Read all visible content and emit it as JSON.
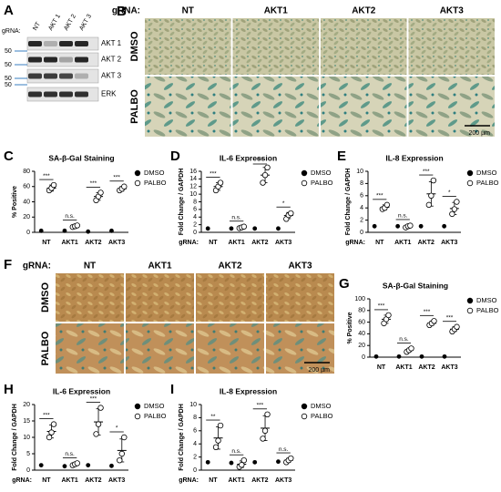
{
  "panels": {
    "A": {
      "letter": "A",
      "prefix": "gRNA:",
      "lanes": [
        "NT",
        "AKT 1",
        "AKT 2",
        "AKT 3"
      ],
      "bands": [
        "AKT 1",
        "AKT 2",
        "AKT 3",
        "ERK"
      ],
      "markers": [
        "50",
        "50",
        "50",
        "50"
      ]
    },
    "B": {
      "letter": "B",
      "prefix": "gRNA:",
      "columns": [
        "NT",
        "AKT1",
        "AKT2",
        "AKT3"
      ],
      "rows": [
        "DMSO",
        "PALBO"
      ],
      "scale_bar": "200 µm"
    },
    "F": {
      "letter": "F",
      "prefix": "gRNA:",
      "columns": [
        "NT",
        "AKT1",
        "AKT2",
        "AKT3"
      ],
      "rows": [
        "DMSO",
        "PALBO"
      ],
      "scale_bar": "200 µm"
    }
  },
  "chart_data": [
    {
      "type": "dot",
      "panel": "C",
      "title": "SA-β-Gal Staining",
      "y_label": "% Positive",
      "categories": [
        "NT",
        "AKT1",
        "AKT2",
        "AKT3"
      ],
      "ylim": [
        0,
        80
      ],
      "yticks": [
        0,
        20,
        40,
        60,
        80
      ],
      "significance": [
        "***",
        "n.s.",
        "***",
        "***"
      ],
      "series": [
        {
          "name": "DMSO",
          "color": "#000000",
          "marker": "filled",
          "values": [
            2,
            2,
            1,
            2
          ]
        },
        {
          "name": "PALBO",
          "color": "#000000",
          "marker": "open",
          "values": [
            58,
            8,
            47,
            57
          ],
          "errors": [
            4,
            1,
            5,
            3
          ],
          "points": [
            [
              55,
              58,
              62
            ],
            [
              7,
              8,
              9
            ],
            [
              42,
              47,
              52
            ],
            [
              55,
              57,
              60
            ]
          ]
        }
      ]
    },
    {
      "type": "dot",
      "panel": "D",
      "title": "IL-6 Expression",
      "y_label": "Fold Change / GAPDH",
      "x_prefix": "gRNA:",
      "categories": [
        "NT",
        "AKT1",
        "AKT2",
        "AKT3"
      ],
      "ylim": [
        0,
        16
      ],
      "yticks": [
        0,
        2,
        4,
        6,
        8,
        10,
        12,
        14,
        16
      ],
      "significance": [
        "***",
        "n.s.",
        "***",
        "*"
      ],
      "series": [
        {
          "name": "DMSO",
          "color": "#000000",
          "marker": "filled",
          "values": [
            1,
            1,
            1,
            1
          ]
        },
        {
          "name": "PALBO",
          "color": "#000000",
          "marker": "open",
          "values": [
            12,
            1.3,
            15,
            4.4
          ],
          "errors": [
            1,
            0.2,
            2,
            0.8
          ],
          "points": [
            [
              11,
              12,
              13
            ],
            [
              1.1,
              1.3,
              1.5
            ],
            [
              13,
              15,
              17
            ],
            [
              3.5,
              4.5,
              5
            ]
          ]
        }
      ]
    },
    {
      "type": "dot",
      "panel": "E",
      "title": "IL-8 Expression",
      "y_label": "Fold Change / GAPDH",
      "x_prefix": "gRNA:",
      "categories": [
        "NT",
        "AKT1",
        "AKT2",
        "AKT3"
      ],
      "ylim": [
        0,
        10
      ],
      "yticks": [
        0,
        2,
        4,
        6,
        8,
        10
      ],
      "significance": [
        "***",
        "n.s.",
        "***",
        "*"
      ],
      "series": [
        {
          "name": "DMSO",
          "color": "#000000",
          "marker": "filled",
          "values": [
            1,
            1,
            1,
            1
          ]
        },
        {
          "name": "PALBO",
          "color": "#000000",
          "marker": "open",
          "values": [
            4.1,
            1,
            6.3,
            3.9
          ],
          "errors": [
            0.4,
            0.2,
            2,
            1
          ],
          "points": [
            [
              3.8,
              4,
              4.5
            ],
            [
              0.8,
              1,
              1.1
            ],
            [
              4.5,
              6,
              8.5
            ],
            [
              3,
              3.8,
              5
            ]
          ]
        }
      ]
    },
    {
      "type": "dot",
      "panel": "G",
      "title": "SA-β-Gal Staining",
      "y_label": "% Positive",
      "categories": [
        "NT",
        "AKT1",
        "AKT2",
        "AKT3"
      ],
      "ylim": [
        0,
        100
      ],
      "yticks": [
        0,
        20,
        40,
        60,
        80,
        100
      ],
      "significance": [
        "***",
        "n.s.",
        "***",
        "***"
      ],
      "series": [
        {
          "name": "DMSO",
          "color": "#000000",
          "marker": "filled",
          "values": [
            1,
            1,
            1,
            1
          ]
        },
        {
          "name": "PALBO",
          "color": "#000000",
          "marker": "open",
          "values": [
            65,
            12,
            58,
            48
          ],
          "errors": [
            7,
            3,
            3.5,
            4
          ],
          "points": [
            [
              58,
              65,
              72
            ],
            [
              9,
              12,
              15
            ],
            [
              55,
              58,
              62
            ],
            [
              44,
              48,
              52
            ]
          ]
        }
      ]
    },
    {
      "type": "dot",
      "panel": "H",
      "title": "IL-6 Expression",
      "y_label": "Fold Change / GAPDH",
      "x_prefix": "gRNA:",
      "categories": [
        "NT",
        "AKT1",
        "AKT2",
        "AKT3"
      ],
      "ylim": [
        0,
        20
      ],
      "yticks": [
        0,
        5,
        10,
        15,
        20
      ],
      "significance": [
        "***",
        "n.s.",
        "***",
        "*"
      ],
      "series": [
        {
          "name": "DMSO",
          "color": "#000000",
          "marker": "filled",
          "values": [
            1.5,
            1.2,
            1.5,
            1.3
          ]
        },
        {
          "name": "PALBO",
          "color": "#000000",
          "marker": "open",
          "values": [
            11.8,
            1.8,
            14.7,
            6
          ],
          "errors": [
            2,
            0.3,
            4,
            3.5
          ],
          "points": [
            [
              10,
              11.5,
              14
            ],
            [
              1.5,
              1.8,
              2.1
            ],
            [
              11,
              14,
              19
            ],
            [
              3,
              5,
              10
            ]
          ]
        }
      ]
    },
    {
      "type": "dot",
      "panel": "I",
      "title": "IL-8 Expression",
      "y_label": "Fold Change / GAPDH",
      "x_prefix": "gRNA:",
      "categories": [
        "NT",
        "AKT1",
        "AKT2",
        "AKT3"
      ],
      "ylim": [
        0,
        10
      ],
      "yticks": [
        0,
        2,
        4,
        6,
        8,
        10
      ],
      "significance": [
        "**",
        "n.s.",
        "***",
        "n.s."
      ],
      "series": [
        {
          "name": "DMSO",
          "color": "#000000",
          "marker": "filled",
          "values": [
            1.2,
            1.1,
            1.2,
            1.3
          ]
        },
        {
          "name": "PALBO",
          "color": "#000000",
          "marker": "open",
          "values": [
            4.9,
            0.9,
            6.4,
            1.5
          ],
          "errors": [
            1.7,
            0.5,
            1.9,
            0.3
          ],
          "points": [
            [
              3.5,
              4.5,
              6.8
            ],
            [
              0.5,
              0.8,
              1.5
            ],
            [
              4.8,
              6,
              8.5
            ],
            [
              1.2,
              1.5,
              1.8
            ]
          ]
        }
      ]
    }
  ]
}
